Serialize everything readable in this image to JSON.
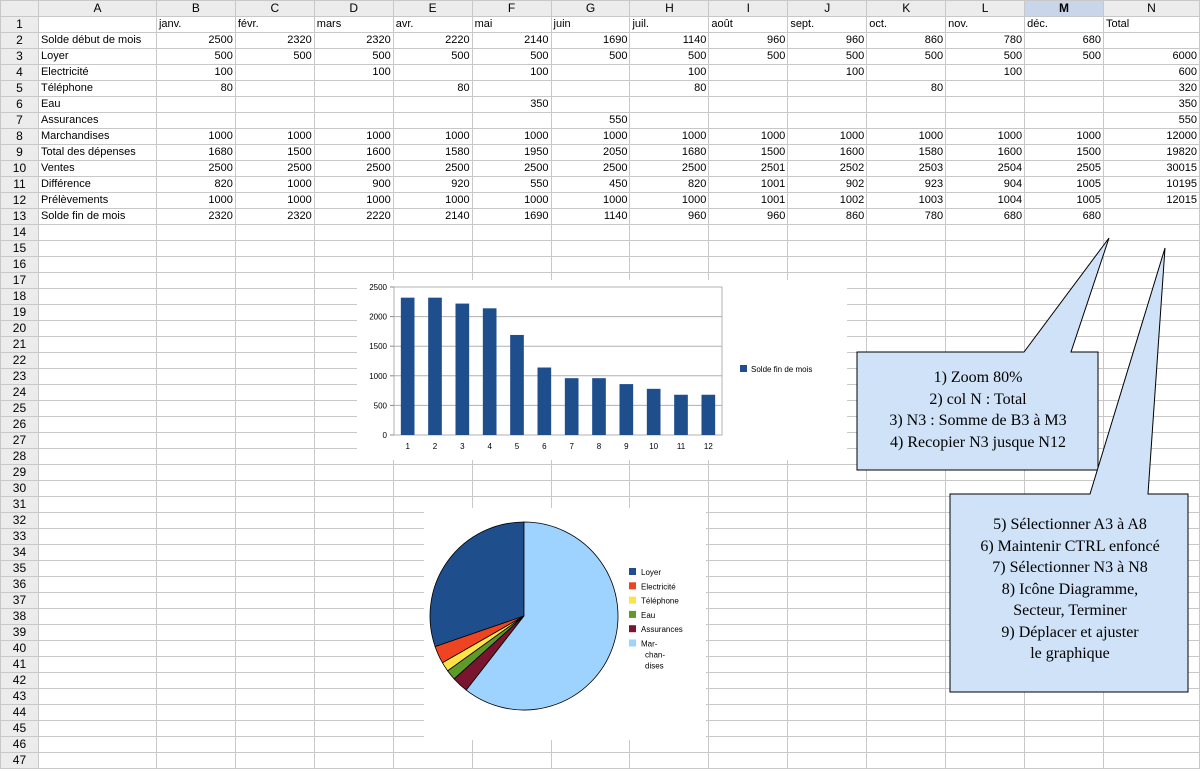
{
  "columns": [
    "A",
    "B",
    "C",
    "D",
    "E",
    "F",
    "G",
    "H",
    "I",
    "J",
    "K",
    "L",
    "M",
    "N"
  ],
  "selected_column": "M",
  "rows": [
    [
      "",
      "janv.",
      "févr.",
      "mars",
      "avr.",
      "mai",
      "juin",
      "juil.",
      "août",
      "sept.",
      "oct.",
      "nov.",
      "déc.",
      "Total"
    ],
    [
      "Solde début de mois",
      "2500",
      "2320",
      "2320",
      "2220",
      "2140",
      "1690",
      "1140",
      "960",
      "960",
      "860",
      "780",
      "680",
      ""
    ],
    [
      "Loyer",
      "500",
      "500",
      "500",
      "500",
      "500",
      "500",
      "500",
      "500",
      "500",
      "500",
      "500",
      "500",
      "6000"
    ],
    [
      "Electricité",
      "100",
      "",
      "100",
      "",
      "100",
      "",
      "100",
      "",
      "100",
      "",
      "100",
      "",
      "600"
    ],
    [
      "Téléphone",
      "80",
      "",
      "",
      "80",
      "",
      "",
      "80",
      "",
      "",
      "80",
      "",
      "",
      "320"
    ],
    [
      "Eau",
      "",
      "",
      "",
      "",
      "350",
      "",
      "",
      "",
      "",
      "",
      "",
      "",
      "350"
    ],
    [
      "Assurances",
      "",
      "",
      "",
      "",
      "",
      "550",
      "",
      "",
      "",
      "",
      "",
      "",
      "550"
    ],
    [
      "Marchandises",
      "1000",
      "1000",
      "1000",
      "1000",
      "1000",
      "1000",
      "1000",
      "1000",
      "1000",
      "1000",
      "1000",
      "1000",
      "12000"
    ],
    [
      "Total des dépenses",
      "1680",
      "1500",
      "1600",
      "1580",
      "1950",
      "2050",
      "1680",
      "1500",
      "1600",
      "1580",
      "1600",
      "1500",
      "19820"
    ],
    [
      "Ventes",
      "2500",
      "2500",
      "2500",
      "2500",
      "2500",
      "2500",
      "2500",
      "2501",
      "2502",
      "2503",
      "2504",
      "2505",
      "30015"
    ],
    [
      "Différence",
      "820",
      "1000",
      "900",
      "920",
      "550",
      "450",
      "820",
      "1001",
      "902",
      "923",
      "904",
      "1005",
      "10195"
    ],
    [
      "Prélèvements",
      "1000",
      "1000",
      "1000",
      "1000",
      "1000",
      "1000",
      "1000",
      "1001",
      "1002",
      "1003",
      "1004",
      "1005",
      "12015"
    ],
    [
      "Solde fin de mois",
      "2320",
      "2320",
      "2220",
      "2140",
      "1690",
      "1140",
      "960",
      "960",
      "860",
      "780",
      "680",
      "680",
      ""
    ]
  ],
  "empty_row_count": 34,
  "callouts": [
    {
      "lines": [
        "1) Zoom 80%",
        "2) col N : Total",
        "3) N3 : Somme de B3 à M3",
        "4) Recopier N3 jusque N12"
      ]
    },
    {
      "lines": [
        "5) Sélectionner A3 à A8",
        "6) Maintenir CTRL enfoncé",
        "7) Sélectionner N3 à N8",
        "8) Icône Diagramme,",
        "Secteur, Terminer",
        "9) Déplacer et ajuster",
        "le graphique"
      ]
    }
  ],
  "chart_data": [
    {
      "type": "bar",
      "categories": [
        "1",
        "2",
        "3",
        "4",
        "5",
        "6",
        "7",
        "8",
        "9",
        "10",
        "11",
        "12"
      ],
      "series": [
        {
          "name": "Solde fin de mois",
          "values": [
            2320,
            2320,
            2220,
            2140,
            1690,
            1140,
            960,
            960,
            860,
            780,
            680,
            680
          ]
        }
      ],
      "y_ticks": [
        "0",
        "500",
        "1000",
        "1500",
        "2000",
        "2500"
      ],
      "ylim": [
        0,
        2500
      ],
      "legend": "right",
      "color": "#1f4e8c"
    },
    {
      "type": "pie",
      "slices": [
        {
          "label": "Loyer",
          "value": 6000,
          "color": "#1f4e8c"
        },
        {
          "label": "Electricité",
          "value": 600,
          "color": "#ee4422"
        },
        {
          "label": "Téléphone",
          "value": 320,
          "color": "#ffe14a"
        },
        {
          "label": "Eau",
          "value": 350,
          "color": "#5e9a2a"
        },
        {
          "label": "Assurances",
          "value": 550,
          "color": "#7a1530"
        },
        {
          "label": "Mar- chan- dises",
          "value": 12000,
          "color": "#9fd3ff"
        }
      ],
      "legend_lines": [
        [
          "Loyer"
        ],
        [
          "Electricité"
        ],
        [
          "Téléphone"
        ],
        [
          "Eau"
        ],
        [
          "Assurances"
        ],
        [
          "Mar-",
          "chan-",
          "dises"
        ]
      ],
      "legend": "right"
    }
  ]
}
